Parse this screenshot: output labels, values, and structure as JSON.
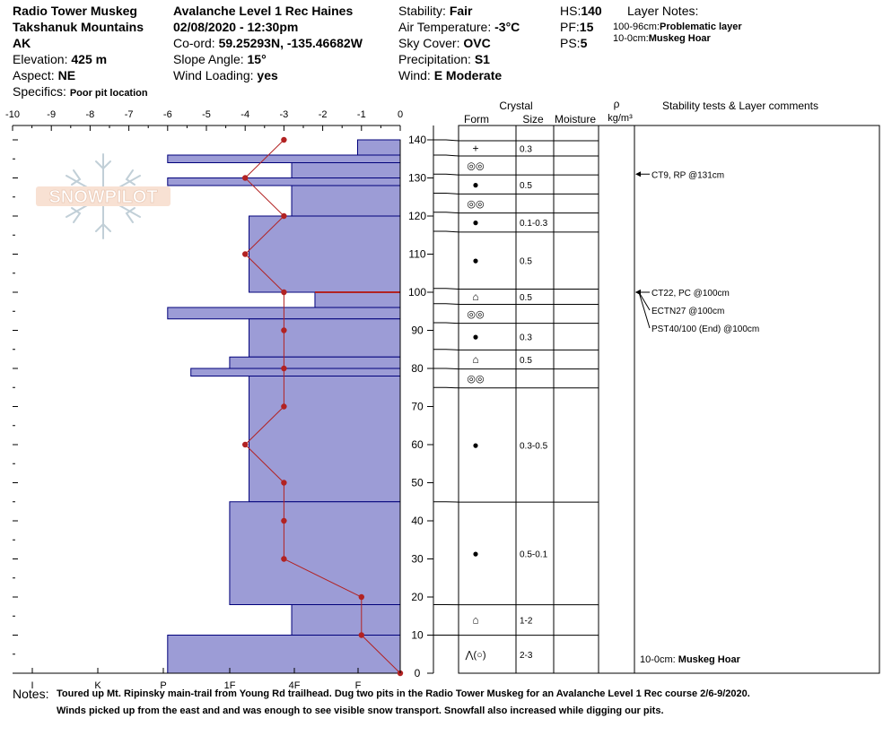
{
  "header": {
    "site": "Radio Tower Muskeg",
    "range": "Takshanuk Mountains",
    "state": "AK",
    "elevation_label": "Elevation:",
    "elevation": "425 m",
    "aspect_label": "Aspect:",
    "aspect": "NE",
    "specifics_label": "Specifics:",
    "specifics": "Poor pit location",
    "observer": "Avalanche Level 1 Rec Haines",
    "datetime": "02/08/2020 - 12:30pm",
    "coord_label": "Co-ord:",
    "coord": "59.25293N, -135.46682W",
    "slope_label": "Slope Angle:",
    "slope": "15°",
    "wind_loading_label": "Wind Loading:",
    "wind_loading": "yes",
    "stability_label": "Stability:",
    "stability": "Fair",
    "air_temp_label": "Air Temperature:",
    "air_temp": "-3°C",
    "sky_label": "Sky Cover:",
    "sky": "OVC",
    "precip_label": "Precipitation:",
    "precip": "S1",
    "wind_label": "Wind:",
    "wind": "E Moderate",
    "hs_label": "HS:",
    "hs": "140",
    "pf_label": "PF:",
    "pf": "15",
    "ps_label": "PS:",
    "ps": "5",
    "layer_notes_title": "Layer Notes:",
    "layer_note_1_range": "100-96cm:",
    "layer_note_1_text": "Problematic layer",
    "layer_note_2_range": "10-0cm:",
    "layer_note_2_text": "Muskeg Hoar"
  },
  "logo_text": "SNOWPILOT",
  "columns": {
    "crystal": "Crystal",
    "form": "Form",
    "size": "Size",
    "moisture": "Moisture",
    "rho": "ρ",
    "density_unit": "kg/m³",
    "tests": "Stability tests & Layer comments"
  },
  "notes_label": "Notes:",
  "notes_line1": "Toured up Mt. Ripinsky main-trail from Young Rd trailhead. Dug two pits in the Radio Tower Muskeg for an Avalanche Level 1 Rec course 2/6-9/2020.",
  "notes_line2": "Winds picked up from the east and and was enough to see visible snow transport. Snowfall also increased while digging our pits.",
  "colors": {
    "hardness_fill": "#9c9cd6",
    "hardness_edge": "#00007a",
    "temperature": "#b22222",
    "ct_highlight": "#b22222"
  },
  "chart_data": {
    "type": "snow-profile",
    "temp_axis": {
      "range": [
        -10,
        0
      ],
      "ticks": [
        "-10",
        "-9",
        "-8",
        "-7",
        "-6",
        "-5",
        "-4",
        "-3",
        "-2",
        "-1",
        "0"
      ]
    },
    "hardness_axis": {
      "ticks": [
        "I",
        "K",
        "P",
        "1F",
        "4F",
        "F"
      ]
    },
    "depth_axis": {
      "range": [
        0,
        140
      ],
      "unit": "cm",
      "ticks": [
        "0",
        "10",
        "20",
        "30",
        "40",
        "50",
        "60",
        "70",
        "80",
        "90",
        "100",
        "110",
        "120",
        "130",
        "140"
      ]
    },
    "hardness_layers": [
      {
        "top": 140,
        "bottom": 136,
        "temp_equiv": -1.1
      },
      {
        "top": 136,
        "bottom": 134,
        "temp_equiv": -6.0
      },
      {
        "top": 134,
        "bottom": 130,
        "temp_equiv": -2.8
      },
      {
        "top": 130,
        "bottom": 128,
        "temp_equiv": -6.0
      },
      {
        "top": 128,
        "bottom": 120,
        "temp_equiv": -2.8
      },
      {
        "top": 120,
        "bottom": 100,
        "temp_equiv": -3.9
      },
      {
        "top": 100,
        "bottom": 96,
        "temp_equiv": -2.2
      },
      {
        "top": 96,
        "bottom": 93,
        "temp_equiv": -6.0
      },
      {
        "top": 93,
        "bottom": 83,
        "temp_equiv": -3.9
      },
      {
        "top": 83,
        "bottom": 80,
        "temp_equiv": -4.4
      },
      {
        "top": 80,
        "bottom": 78,
        "temp_equiv": -5.4
      },
      {
        "top": 78,
        "bottom": 45,
        "temp_equiv": -3.9
      },
      {
        "top": 45,
        "bottom": 18,
        "temp_equiv": -4.4
      },
      {
        "top": 18,
        "bottom": 10,
        "temp_equiv": -2.8
      },
      {
        "top": 10,
        "bottom": 0,
        "temp_equiv": -6.0
      }
    ],
    "temperature_profile": [
      {
        "depth": 140,
        "temp": -3
      },
      {
        "depth": 130,
        "temp": -4
      },
      {
        "depth": 120,
        "temp": -3
      },
      {
        "depth": 110,
        "temp": -4
      },
      {
        "depth": 100,
        "temp": -3
      },
      {
        "depth": 90,
        "temp": -3
      },
      {
        "depth": 80,
        "temp": -3
      },
      {
        "depth": 70,
        "temp": -3
      },
      {
        "depth": 60,
        "temp": -4
      },
      {
        "depth": 50,
        "temp": -3
      },
      {
        "depth": 40,
        "temp": -3
      },
      {
        "depth": 30,
        "temp": -3
      },
      {
        "depth": 20,
        "temp": -1
      },
      {
        "depth": 10,
        "temp": -1
      },
      {
        "depth": 0,
        "temp": 0
      }
    ],
    "ct_layer_depth": 100,
    "layers": [
      {
        "top": 140,
        "bottom": 136,
        "form": "+",
        "size": "0.3"
      },
      {
        "top": 136,
        "bottom": 131,
        "form": "◎◎",
        "size": ""
      },
      {
        "top": 131,
        "bottom": 126,
        "form": "●",
        "size": "0.5"
      },
      {
        "top": 126,
        "bottom": 121,
        "form": "◎◎",
        "size": ""
      },
      {
        "top": 121,
        "bottom": 116,
        "form": "●",
        "size": "0.1-0.3"
      },
      {
        "top": 116,
        "bottom": 101,
        "form": "●",
        "size": "0.5"
      },
      {
        "top": 101,
        "bottom": 97,
        "form": "⌂",
        "size": "0.5"
      },
      {
        "top": 97,
        "bottom": 92,
        "form": "◎◎",
        "size": ""
      },
      {
        "top": 92,
        "bottom": 85,
        "form": "●",
        "size": "0.3"
      },
      {
        "top": 85,
        "bottom": 80,
        "form": "⌂",
        "size": "0.5"
      },
      {
        "top": 80,
        "bottom": 75,
        "form": "◎◎",
        "size": ""
      },
      {
        "top": 75,
        "bottom": 45,
        "form": "●",
        "size": "0.3-0.5"
      },
      {
        "top": 45,
        "bottom": 18,
        "form": "●",
        "size": "0.5-0.1"
      },
      {
        "top": 18,
        "bottom": 10,
        "form": "⌂",
        "size": "1-2"
      },
      {
        "top": 10,
        "bottom": 0,
        "form": "⋀(○)",
        "size": "2-3"
      }
    ],
    "stability_tests": [
      {
        "depth": 131,
        "label": "CT9, RP @131cm"
      },
      {
        "depth": 100,
        "label": "CT22, PC @100cm"
      },
      {
        "depth": 100,
        "label": "ECTN27 @100cm"
      },
      {
        "depth": 100,
        "label": "PST40/100 (End) @100cm"
      }
    ],
    "bottom_comment": "10-0cm:",
    "bottom_comment_text": "Muskeg Hoar"
  }
}
